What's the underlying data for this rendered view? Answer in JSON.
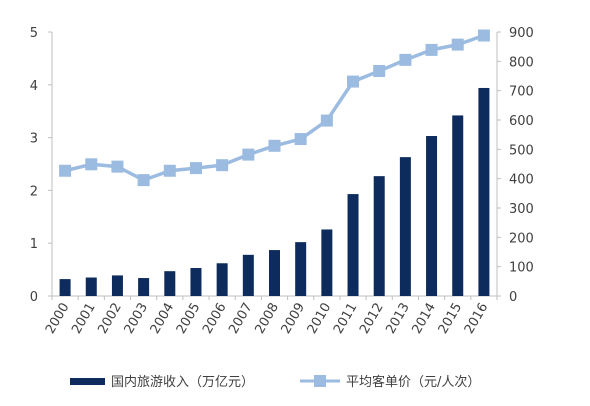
{
  "chart_data": {
    "type": "bar+line",
    "categories": [
      "2000",
      "2001",
      "2002",
      "2003",
      "2004",
      "2005",
      "2006",
      "2007",
      "2008",
      "2009",
      "2010",
      "2011",
      "2012",
      "2013",
      "2014",
      "2015",
      "2016"
    ],
    "series": [
      {
        "name": "国内旅游收入（万亿元）",
        "type": "bar",
        "axis": "left",
        "color": "#0d2b5c",
        "values": [
          0.32,
          0.35,
          0.39,
          0.34,
          0.47,
          0.53,
          0.62,
          0.78,
          0.87,
          1.02,
          1.26,
          1.93,
          2.27,
          2.63,
          3.03,
          3.42,
          3.94
        ]
      },
      {
        "name": "平均客单价（元/人次）",
        "type": "line",
        "axis": "right",
        "color": "#9bbbe0",
        "values": [
          427,
          449,
          441,
          395,
          427,
          436,
          446,
          482,
          512,
          535,
          598,
          731,
          767,
          805,
          839,
          857,
          888
        ]
      }
    ],
    "y_left": {
      "min": 0,
      "max": 5,
      "ticks": [
        0,
        1,
        2,
        3,
        4,
        5
      ]
    },
    "y_right": {
      "min": 0,
      "max": 900,
      "ticks": [
        0,
        100,
        200,
        300,
        400,
        500,
        600,
        700,
        800,
        900
      ]
    },
    "grid": false,
    "legend_position": "bottom",
    "title": "",
    "xlabel": "",
    "ylabel": ""
  }
}
